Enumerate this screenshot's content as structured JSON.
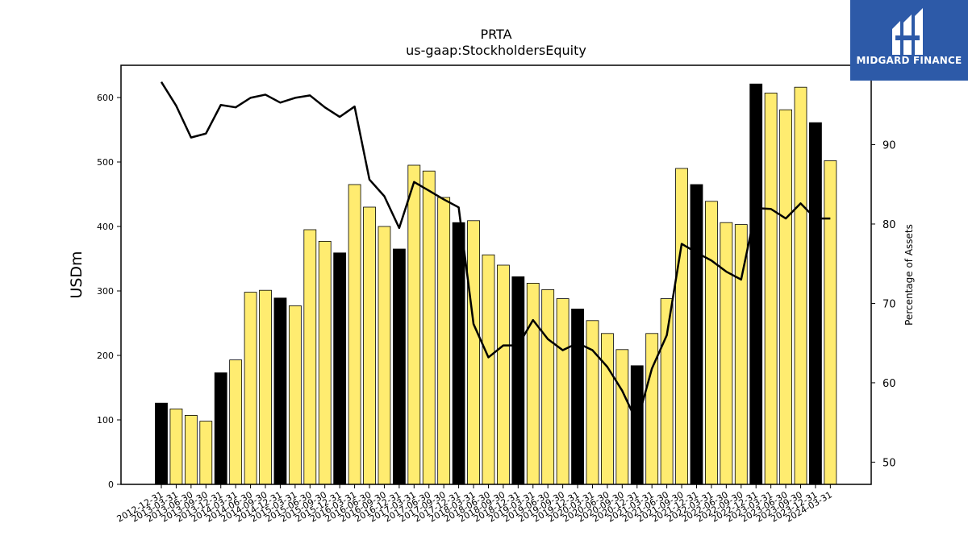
{
  "brand": {
    "name": "MIDGARD FINANCE",
    "bg_color": "#2d5aa8"
  },
  "chart_data": {
    "type": "bar+line",
    "title": "PRTA",
    "subtitle": "us-gaap:StockholdersEquity",
    "ylabel": "USDm",
    "y2label": "Percentage of Assets",
    "ylim": [
      0,
      650
    ],
    "y2lim": [
      47.2,
      100
    ],
    "yticks": [
      0,
      100,
      200,
      300,
      400,
      500,
      600
    ],
    "y2ticks": [
      50,
      60,
      70,
      80,
      90
    ],
    "grid": false,
    "categories": [
      "2012-12-31",
      "2013-03-31",
      "2013-06-30",
      "2013-09-30",
      "2013-12-31",
      "2014-03-31",
      "2014-06-30",
      "2014-09-30",
      "2014-12-31",
      "2015-03-31",
      "2015-06-30",
      "2015-09-30",
      "2015-12-31",
      "2016-03-31",
      "2016-06-30",
      "2016-09-30",
      "2016-12-31",
      "2017-03-31",
      "2017-06-30",
      "2017-09-30",
      "2017-12-31",
      "2018-03-31",
      "2018-06-30",
      "2018-09-30",
      "2018-12-31",
      "2019-03-31",
      "2019-06-30",
      "2019-09-30",
      "2019-12-31",
      "2020-03-31",
      "2020-06-30",
      "2020-09-30",
      "2020-12-31",
      "2021-03-31",
      "2021-06-30",
      "2021-09-30",
      "2021-12-31",
      "2022-03-31",
      "2022-06-30",
      "2022-09-30",
      "2022-12-31",
      "2023-03-31",
      "2023-06-30",
      "2023-09-30",
      "2023-12-31",
      "2024-03-31"
    ],
    "series": [
      {
        "type": "bar",
        "values": [
          126,
          117,
          107,
          98,
          173,
          193,
          298,
          301,
          289,
          277,
          395,
          377,
          359,
          465,
          430,
          400,
          365,
          495,
          486,
          445,
          406,
          409,
          356,
          340,
          322,
          312,
          302,
          288,
          272,
          254,
          234,
          209,
          184,
          234,
          288,
          490,
          465,
          439,
          406,
          403,
          621,
          607,
          581,
          616,
          561,
          502
        ],
        "colors": {
          "q4": "#000000",
          "other": "#ffec70"
        }
      },
      {
        "type": "line",
        "axis": "right",
        "color": "#000000",
        "values": [
          97.9,
          94.9,
          90.9,
          91.4,
          95.0,
          94.7,
          95.9,
          96.3,
          95.3,
          95.9,
          96.2,
          94.7,
          93.5,
          94.8,
          85.6,
          83.5,
          79.5,
          85.3,
          84.2,
          83.1,
          82.1,
          67.4,
          63.2,
          64.7,
          64.7,
          67.9,
          65.5,
          64.1,
          65.0,
          64.1,
          62.0,
          59.0,
          55.0,
          61.8,
          66.0,
          77.5,
          76.4,
          75.4,
          74.0,
          73.0,
          82.0,
          81.9,
          80.7,
          82.6,
          80.7,
          80.7
        ]
      }
    ]
  }
}
